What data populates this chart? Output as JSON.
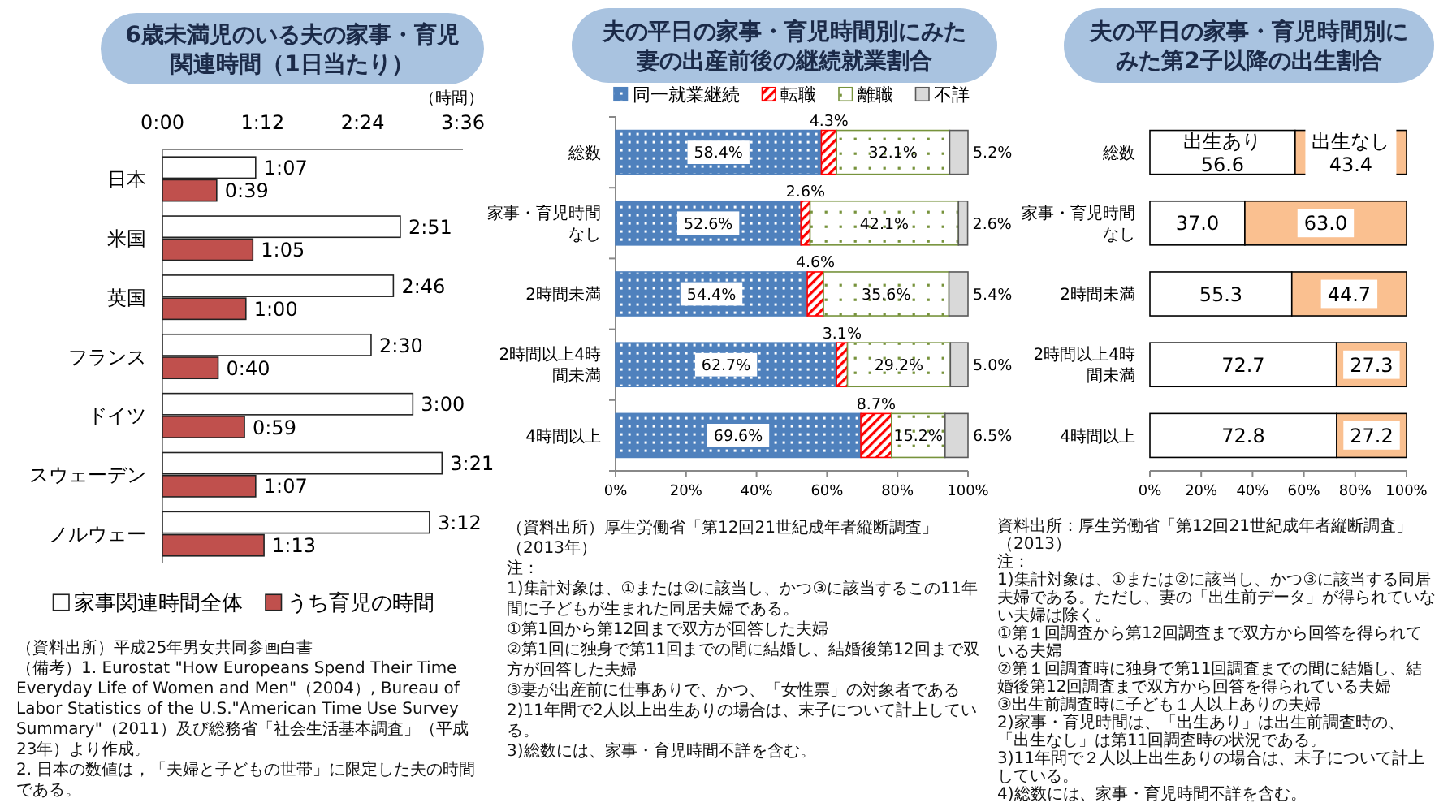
{
  "chart_data": [
    {
      "type": "bar",
      "orientation": "horizontal",
      "title": "6歳未満児のいる夫の家事・育児関連時間（1日当たり）",
      "xlabel": "（時間）",
      "categories": [
        "日本",
        "米国",
        "英国",
        "フランス",
        "ドイツ",
        "スウェーデン",
        "ノルウェー"
      ],
      "series": [
        {
          "name": "家事関連時間全体",
          "color": "#ffffff",
          "values": [
            1.117,
            2.85,
            2.767,
            2.5,
            3.0,
            3.35,
            3.2
          ],
          "value_labels": [
            "1:07",
            "2:51",
            "2:46",
            "2:30",
            "3:00",
            "3:21",
            "3:12"
          ]
        },
        {
          "name": "うち育児の時間",
          "color": "#c0504d",
          "values": [
            0.65,
            1.083,
            1.0,
            0.667,
            0.983,
            1.117,
            1.217
          ],
          "value_labels": [
            "0:39",
            "1:05",
            "1:00",
            "0:40",
            "0:59",
            "1:07",
            "1:13"
          ]
        }
      ],
      "xlim": [
        0,
        3.6
      ],
      "xticks": [
        {
          "value": 0,
          "label": "0:00"
        },
        {
          "value": 1.2,
          "label": "1:12"
        },
        {
          "value": 2.4,
          "label": "2:24"
        },
        {
          "value": 3.6,
          "label": "3:36"
        }
      ],
      "legend": "bottom",
      "annotations": [
        "（資料出所）平成25年男女共同参画白書",
        "（備考）1. Eurostat \"How Europeans Spend Their Time Everyday Life of Women and Men\"（2004）, Bureau of Labor Statistics of the U.S.\"American Time Use Survey Summary\"（2011）及び総務省「社会生活基本調査」（平成23年）より作成。",
        "2. 日本の数値は，「夫婦と子どもの世帯」に限定した夫の時間である。"
      ]
    },
    {
      "type": "bar",
      "orientation": "horizontal",
      "stacked": true,
      "title": "夫の平日の家事・育児時間別にみた妻の出産前後の継続就業割合",
      "categories": [
        "総数",
        "家事・育児時間なし",
        "2時間未満",
        "2時間以上4時間未満",
        "4時間以上"
      ],
      "series": [
        {
          "name": "同一就業継続",
          "color": "#4f81bd",
          "values": [
            58.4,
            52.6,
            54.4,
            62.7,
            69.6
          ],
          "value_labels": [
            "58.4%",
            "52.6%",
            "54.4%",
            "62.7%",
            "69.6%"
          ]
        },
        {
          "name": "転職",
          "color": "#ff0000",
          "values": [
            4.3,
            2.6,
            4.6,
            3.1,
            8.7
          ],
          "value_labels": [
            "4.3%",
            "2.6%",
            "4.6%",
            "3.1%",
            "8.7%"
          ]
        },
        {
          "name": "離職",
          "color": "#77933c",
          "values": [
            32.1,
            42.1,
            35.6,
            29.2,
            15.2
          ],
          "value_labels": [
            "32.1%",
            "42.1%",
            "35.6%",
            "29.2%",
            "15.2%"
          ]
        },
        {
          "name": "不詳",
          "color": "#d9d9d9",
          "values": [
            5.2,
            2.6,
            5.4,
            5.0,
            6.5
          ],
          "value_labels": [
            "5.2%",
            "2.6%",
            "5.4%",
            "5.0%",
            "6.5%"
          ]
        }
      ],
      "xlim": [
        0,
        100
      ],
      "xticks": [
        {
          "value": 0,
          "label": "0%"
        },
        {
          "value": 20,
          "label": "20%"
        },
        {
          "value": 40,
          "label": "40%"
        },
        {
          "value": 60,
          "label": "60%"
        },
        {
          "value": 80,
          "label": "80%"
        },
        {
          "value": 100,
          "label": "100%"
        }
      ],
      "legend": "top",
      "annotations": [
        "（資料出所）厚生労働省「第12回21世紀成年者縦断調査」（2013年）",
        "注：",
        "1)集計対象は、①または②に該当し、かつ③に該当するこの11年間に子どもが生まれた同居夫婦である。",
        "①第1回から第12回まで双方が回答した夫婦",
        "②第1回に独身で第11回までの間に結婚し、結婚後第12回まで双方が回答した夫婦",
        "③妻が出産前に仕事ありで、かつ、「女性票」の対象者である",
        "2)11年間で2人以上出生ありの場合は、末子について計上している。",
        "3)総数には、家事・育児時間不詳を含む。"
      ]
    },
    {
      "type": "bar",
      "orientation": "horizontal",
      "stacked": true,
      "title": "夫の平日の家事・育児時間別にみた第2子以降の出生割合",
      "categories": [
        "総数",
        "家事・育児時間なし",
        "2時間未満",
        "2時間以上4時間未満",
        "4時間以上"
      ],
      "series": [
        {
          "name": "出生あり",
          "color": "#ffffff",
          "values": [
            56.6,
            37.0,
            55.3,
            72.7,
            72.8
          ],
          "value_labels": [
            "56.6",
            "37.0",
            "55.3",
            "72.7",
            "72.8"
          ]
        },
        {
          "name": "出生なし",
          "color": "#fac090",
          "values": [
            43.4,
            63.0,
            44.7,
            27.3,
            27.2
          ],
          "value_labels": [
            "43.4",
            "63.0",
            "44.7",
            "27.3",
            "27.2"
          ]
        }
      ],
      "xlim": [
        0,
        100
      ],
      "xticks": [
        {
          "value": 0,
          "label": "0%"
        },
        {
          "value": 20,
          "label": "20%"
        },
        {
          "value": 40,
          "label": "40%"
        },
        {
          "value": 60,
          "label": "60%"
        },
        {
          "value": 80,
          "label": "80%"
        },
        {
          "value": 100,
          "label": "100%"
        }
      ],
      "annotations": [
        "資料出所：厚生労働省「第12回21世紀成年者縦断調査」（2013）",
        "注：",
        "1)集計対象は、①または②に該当し、かつ③に該当する同居夫婦である。ただし、妻の「出生前データ」が得られていない夫婦は除く。",
        "①第１回調査から第12回調査まで双方から回答を得られている夫婦",
        "②第１回調査時に独身で第11回調査までの間に結婚し、結婚後第12回調査まで双方から回答を得られている夫婦",
        "③出生前調査時に子ども１人以上ありの夫婦",
        "2)家事・育児時間は、「出生あり」は出生前調査時の、「出生なし」は第11回調査時の状況である。",
        "3)11年間で２人以上出生ありの場合は、末子について計上している。",
        "4)総数には、家事・育児時間不詳を含む。"
      ]
    }
  ]
}
